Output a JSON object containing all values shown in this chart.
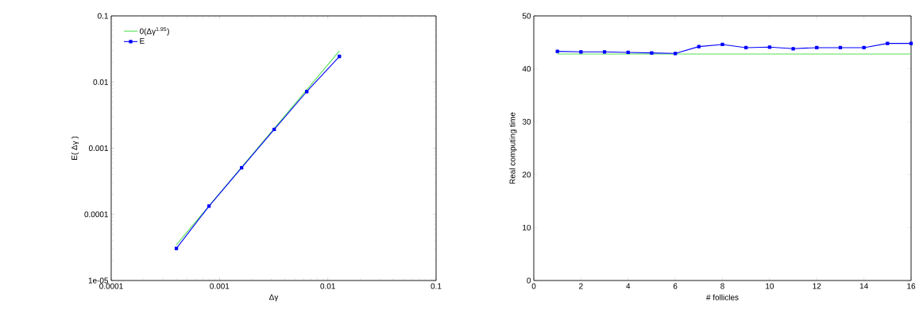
{
  "chart_data": [
    {
      "type": "line",
      "xlabel": "Δγ",
      "ylabel": "E( Δγ )",
      "log": "xy",
      "legend": "top left",
      "xlim": [
        0.0001,
        0.1
      ],
      "xticks": [
        0.0001,
        0.001,
        0.01,
        0.1
      ],
      "ylim": [
        1e-05,
        0.1
      ],
      "yticks": [
        {
          "value": 1e-05,
          "label": "1e-05"
        },
        0.0001,
        0.001,
        0.01,
        0.1
      ],
      "series": [
        {
          "name": "0(Δγ$^{1.95}$)",
          "color": "#55e055",
          "marker": "none",
          "x": [
            0.0004,
            0.0128
          ],
          "values": [
            3.47e-05,
            0.0296
          ]
        },
        {
          "name": "E",
          "color": "#0000ff",
          "marker": "square",
          "x": [
            0.0004,
            0.0008,
            0.0016,
            0.0032,
            0.0064,
            0.0128
          ],
          "values": [
            3.06e-05,
            0.000133,
            0.000505,
            0.00192,
            0.00718,
            0.0244
          ]
        }
      ]
    },
    {
      "type": "line",
      "xlabel": "# follicles",
      "ylabel": "Real computing time",
      "xlim": [
        0,
        16
      ],
      "xticks": [
        0,
        2,
        4,
        6,
        8,
        10,
        12,
        14,
        16
      ],
      "ylim": [
        0,
        50
      ],
      "yticks": [
        0,
        10,
        20,
        30,
        40,
        50
      ],
      "series": [
        {
          "color": "#55e055",
          "marker": "none",
          "x": [
            1,
            16
          ],
          "values": [
            42.8,
            42.8
          ]
        },
        {
          "color": "#0000ff",
          "marker": "square",
          "x": [
            1,
            2,
            3,
            4,
            5,
            6,
            7,
            8,
            9,
            10,
            11,
            12,
            13,
            14,
            15,
            16
          ],
          "values": [
            43.3,
            43.2,
            43.2,
            43.1,
            43.0,
            42.9,
            44.2,
            44.6,
            44.0,
            44.1,
            43.8,
            44.0,
            44.0,
            44.0,
            44.8,
            44.8
          ]
        }
      ]
    }
  ]
}
